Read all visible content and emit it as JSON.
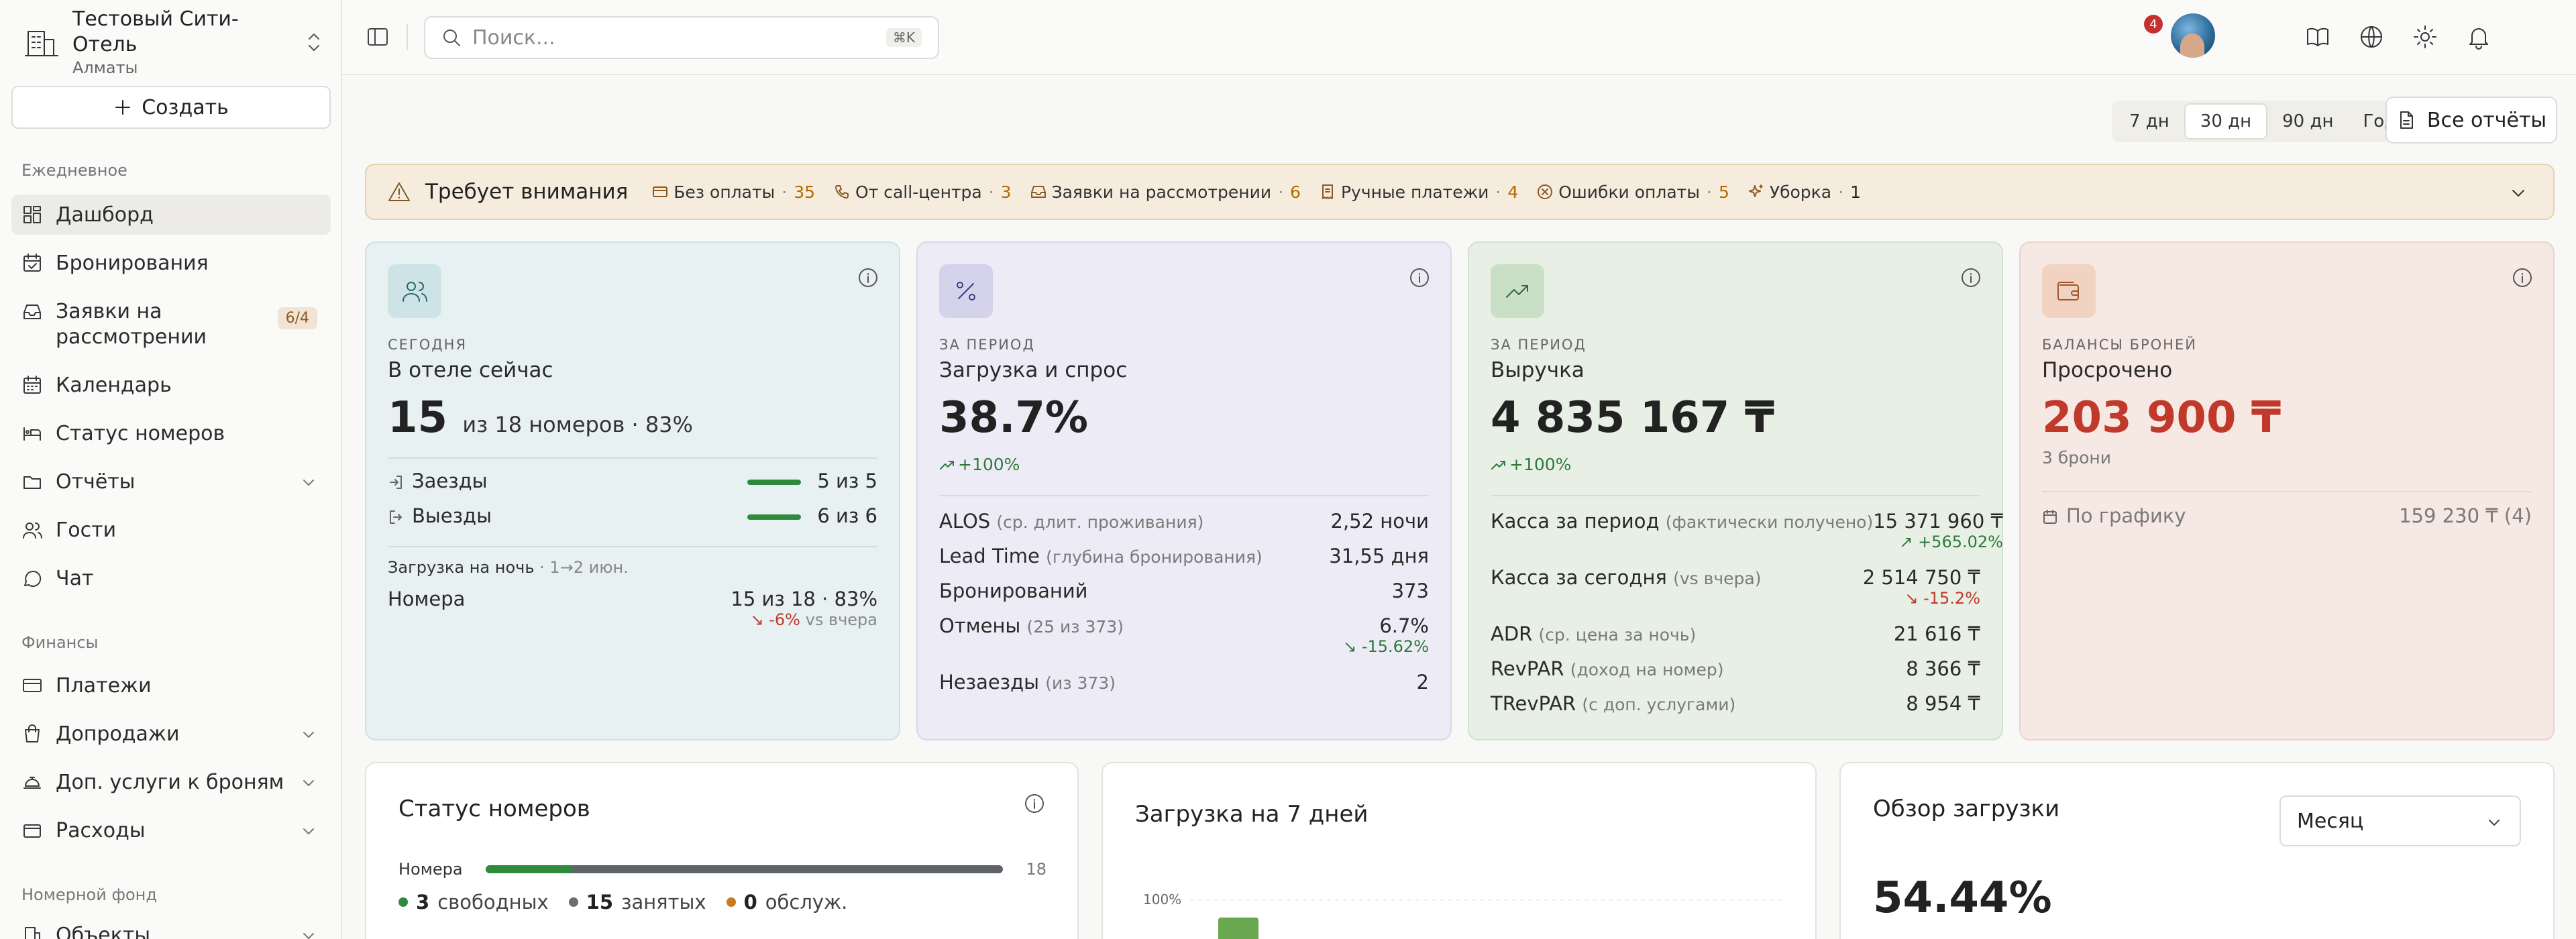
{
  "hotel": {
    "name": "Тестовый Сити-Отель",
    "city": "Алматы"
  },
  "sidebar": {
    "create_label": "Создать",
    "sections": {
      "daily": "Ежедневное",
      "finance": "Финансы",
      "rooms": "Номерной фонд"
    },
    "items": [
      {
        "label": "Дашборд",
        "icon": "dashboard-icon",
        "active": true
      },
      {
        "label": "Бронирования",
        "icon": "calendar-check-icon"
      },
      {
        "label": "Заявки на рассмотрении",
        "icon": "inbox-icon",
        "badge": "6/4"
      },
      {
        "label": "Календарь",
        "icon": "calendar-icon"
      },
      {
        "label": "Статус номеров",
        "icon": "bed-icon"
      },
      {
        "label": "Отчёты",
        "icon": "folder-icon"
      },
      {
        "label": "Гости",
        "icon": "users-icon"
      },
      {
        "label": "Чат",
        "icon": "chat-icon"
      },
      {
        "label": "Платежи",
        "icon": "card-icon"
      },
      {
        "label": "Допродажи",
        "icon": "bag-icon"
      },
      {
        "label": "Доп. услуги к броням",
        "icon": "concierge-icon"
      },
      {
        "label": "Расходы",
        "icon": "wallet-icon"
      },
      {
        "label": "Объекты",
        "icon": "building-icon"
      }
    ]
  },
  "topbar": {
    "search_placeholder": "Поиск...",
    "search_shortcut": "⌘K",
    "notifications_count": "4"
  },
  "period": {
    "options": [
      "7 дн",
      "30 дн",
      "90 дн",
      "Год"
    ],
    "selected": "30 дн"
  },
  "all_reports_label": "Все отчёты",
  "attention": {
    "title": "Требует внимания",
    "items": [
      {
        "label": "Без оплаты",
        "count": "35",
        "icon": "card-icon"
      },
      {
        "label": "От call-центра",
        "count": "3",
        "icon": "phone-icon"
      },
      {
        "label": "Заявки на рассмотрении",
        "count": "6",
        "icon": "inbox-icon"
      },
      {
        "label": "Ручные платежи",
        "count": "4",
        "icon": "receipt-icon"
      },
      {
        "label": "Ошибки оплаты",
        "count": "5",
        "icon": "x-circle-icon"
      },
      {
        "label": "Уборка",
        "count": "1",
        "icon": "sparkles-icon"
      }
    ]
  },
  "cards": {
    "guests": {
      "eyebrow": "СЕГОДНЯ",
      "title": "В отеле сейчас",
      "value": "15",
      "value_suffix": "из 18 номеров · 83%",
      "checkins_label": "Заезды",
      "checkins_value": "5 из 5",
      "checkouts_label": "Выезды",
      "checkouts_value": "6 из 6",
      "night_title": "Загрузка на ночь",
      "night_dates": "· 1→2 июн.",
      "rooms_label": "Номера",
      "rooms_value": "15 из 18 · 83%",
      "rooms_delta": "-6%",
      "rooms_delta_note": "vs вчера"
    },
    "occupancy": {
      "eyebrow": "ЗА ПЕРИОД",
      "title": "Загрузка и спрос",
      "value": "38.7%",
      "delta": "+100%",
      "rows": [
        {
          "label": "ALOS",
          "note": "(ср. длит. проживания)",
          "value": "2,52 ночи"
        },
        {
          "label": "Lead Time",
          "note": "(глубина бронирования)",
          "value": "31,55 дня"
        },
        {
          "label": "Бронирований",
          "note": "",
          "value": "373"
        },
        {
          "label": "Отмены",
          "note": "(25 из 373)",
          "value": "6.7%",
          "delta": "-15.62%"
        },
        {
          "label": "Незаезды",
          "note": "(из 373)",
          "value": "2"
        }
      ]
    },
    "revenue": {
      "eyebrow": "ЗА ПЕРИОД",
      "title": "Выручка",
      "value": "4 835 167 ₸",
      "delta": "+100%",
      "rows": [
        {
          "label": "Касса за период",
          "note": "(фактически получено)",
          "value": "15 371 960 ₸",
          "delta": "+565.02%"
        },
        {
          "label": "Касса за сегодня",
          "note": "(vs вчера)",
          "value": "2 514 750 ₸",
          "delta": "-15.2%"
        },
        {
          "label": "ADR",
          "note": "(ср. цена за ночь)",
          "value": "21 616 ₸"
        },
        {
          "label": "RevPAR",
          "note": "(доход на номер)",
          "value": "8 366 ₸"
        },
        {
          "label": "TRevPAR",
          "note": "(с доп. услугами)",
          "value": "8 954 ₸"
        }
      ]
    },
    "balances": {
      "eyebrow": "БАЛАНСЫ БРОНЕЙ",
      "title": "Просрочено",
      "value": "203 900 ₸",
      "note": "3 брони",
      "schedule_label": "По графику",
      "schedule_value": "159 230 ₸ (4)"
    }
  },
  "room_status": {
    "title": "Статус номеров",
    "rooms_label": "Номера",
    "rooms_total": "18",
    "free_fraction": 0.167,
    "legend": [
      {
        "count": "3",
        "label": "свободных",
        "color": "#2e8b3e"
      },
      {
        "count": "15",
        "label": "занятых",
        "color": "#6b6f73"
      },
      {
        "count": "0",
        "label": "обслуж.",
        "color": "#c77a1e"
      }
    ]
  },
  "load7": {
    "title": "Загрузка на 7 дней",
    "ytick": "100%"
  },
  "overview": {
    "title": "Обзор загрузки",
    "select_value": "Месяц",
    "value": "54.44%"
  },
  "colors": {
    "accent": "#2e8b3e",
    "negative": "#c0392b",
    "warning": "#b26a00"
  }
}
